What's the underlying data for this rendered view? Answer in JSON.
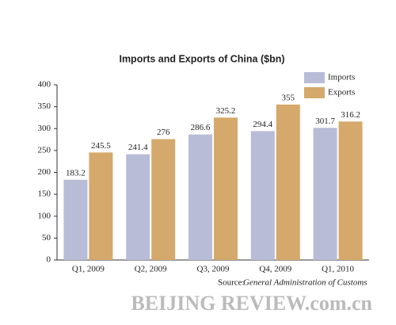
{
  "chart_data": {
    "type": "bar",
    "title": "Imports and Exports of China ($bn)",
    "categories": [
      "Q1, 2009",
      "Q2, 2009",
      "Q3, 2009",
      "Q4, 2009",
      "Q1, 2010"
    ],
    "series": [
      {
        "name": "Imports",
        "color": "#b9bcd6",
        "values": [
          183.2,
          241.4,
          286.6,
          294.4,
          301.7
        ]
      },
      {
        "name": "Exports",
        "color": "#d5a96b",
        "values": [
          245.5,
          276,
          325.2,
          355,
          316.2
        ]
      }
    ],
    "ylim": [
      0,
      400
    ],
    "yticks": [
      0,
      50,
      100,
      150,
      200,
      250,
      300,
      350,
      400
    ],
    "legend": "upper right",
    "source_label": "Source:",
    "source": "General Administration of Customs",
    "watermark": "BEIJING REVIEW.com.cn"
  }
}
